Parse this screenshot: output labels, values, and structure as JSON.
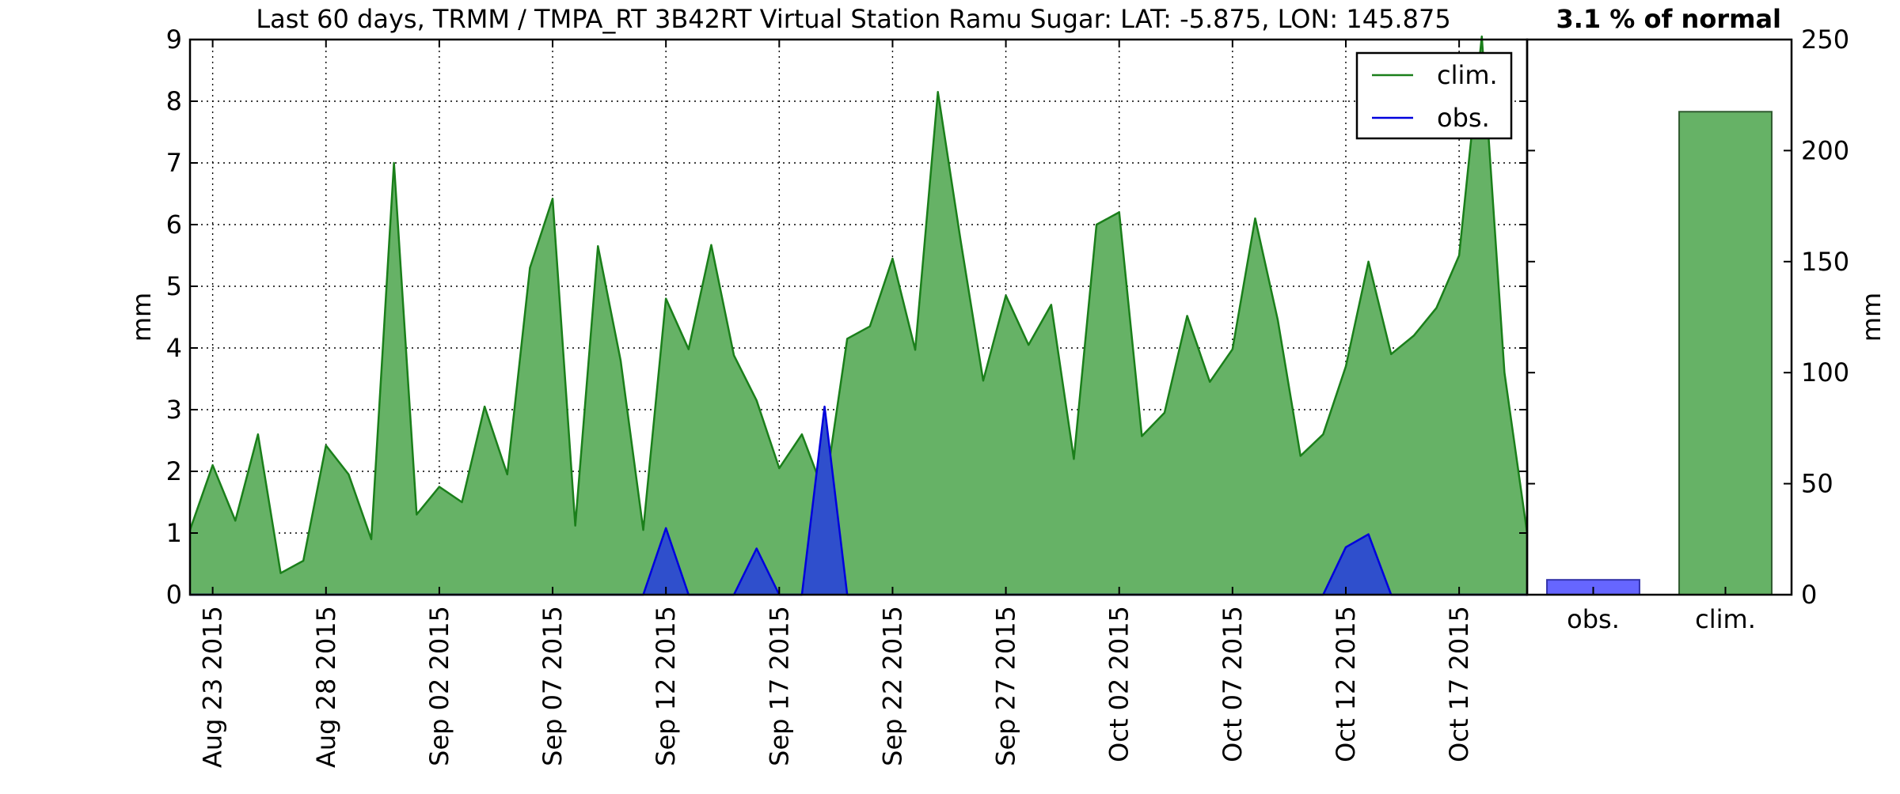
{
  "chart_data": [
    {
      "type": "area",
      "title": "Last 60 days, TRMM / TMPA_RT 3B42RT Virtual Station Ramu Sugar: LAT: -5.875, LON: 145.875",
      "ylabel": "mm",
      "ylim": [
        0,
        9
      ],
      "yticks": [
        0,
        1,
        2,
        3,
        4,
        5,
        6,
        7,
        8,
        9
      ],
      "xlim": [
        "2015-08-22",
        "2015-10-20"
      ],
      "xticks": [
        "Aug 23 2015",
        "Aug 28 2015",
        "Sep 02 2015",
        "Sep 07 2015",
        "Sep 12 2015",
        "Sep 17 2015",
        "Sep 22 2015",
        "Sep 27 2015",
        "Oct 02 2015",
        "Oct 07 2015",
        "Oct 12 2015",
        "Oct 17 2015"
      ],
      "grid": true,
      "legend": {
        "position": "top-right",
        "entries": [
          "clim.",
          "obs."
        ]
      },
      "x": [
        "2015-08-22",
        "2015-08-23",
        "2015-08-24",
        "2015-08-25",
        "2015-08-26",
        "2015-08-27",
        "2015-08-28",
        "2015-08-29",
        "2015-08-30",
        "2015-08-31",
        "2015-09-01",
        "2015-09-02",
        "2015-09-03",
        "2015-09-04",
        "2015-09-05",
        "2015-09-06",
        "2015-09-07",
        "2015-09-08",
        "2015-09-09",
        "2015-09-10",
        "2015-09-11",
        "2015-09-12",
        "2015-09-13",
        "2015-09-14",
        "2015-09-15",
        "2015-09-16",
        "2015-09-17",
        "2015-09-18",
        "2015-09-19",
        "2015-09-20",
        "2015-09-21",
        "2015-09-22",
        "2015-09-23",
        "2015-09-24",
        "2015-09-25",
        "2015-09-26",
        "2015-09-27",
        "2015-09-28",
        "2015-09-29",
        "2015-09-30",
        "2015-10-01",
        "2015-10-02",
        "2015-10-03",
        "2015-10-04",
        "2015-10-05",
        "2015-10-06",
        "2015-10-07",
        "2015-10-08",
        "2015-10-09",
        "2015-10-10",
        "2015-10-11",
        "2015-10-12",
        "2015-10-13",
        "2015-10-14",
        "2015-10-15",
        "2015-10-16",
        "2015-10-17",
        "2015-10-18",
        "2015-10-19",
        "2015-10-20"
      ],
      "series": [
        {
          "name": "clim.",
          "color": "#1a7f1a",
          "fill": "#66b266",
          "values": [
            1.05,
            2.1,
            1.2,
            2.6,
            0.35,
            0.55,
            2.42,
            1.95,
            0.9,
            7.0,
            1.3,
            1.75,
            1.5,
            3.05,
            1.95,
            5.3,
            6.42,
            1.12,
            5.65,
            3.8,
            1.05,
            4.8,
            3.98,
            5.67,
            3.88,
            3.15,
            2.05,
            2.6,
            1.63,
            4.15,
            4.35,
            5.45,
            3.97,
            8.15,
            5.75,
            3.47,
            4.85,
            4.05,
            4.7,
            2.2,
            6.0,
            6.2,
            2.57,
            2.95,
            4.52,
            3.45,
            3.98,
            6.1,
            4.45,
            2.25,
            2.6,
            3.7,
            5.4,
            3.9,
            4.2,
            4.65,
            5.5,
            9.05,
            3.6,
            1.0
          ]
        },
        {
          "name": "obs.",
          "color": "#0000dd",
          "fill": "#2f4fcc",
          "values": [
            0,
            0,
            0,
            0,
            0,
            0,
            0,
            0,
            0,
            0,
            0,
            0,
            0,
            0,
            0,
            0,
            0,
            0,
            0,
            0,
            0,
            1.08,
            0,
            0,
            0,
            0.75,
            0,
            0,
            3.05,
            0,
            0,
            0,
            0,
            0,
            0,
            0,
            0,
            0,
            0,
            0,
            0,
            0,
            0,
            0,
            0,
            0,
            0,
            0,
            0,
            0,
            0,
            0.77,
            0.98,
            0,
            0,
            0,
            0,
            0,
            0,
            0
          ]
        }
      ]
    },
    {
      "type": "bar",
      "title": "3.1 % of normal",
      "categories": [
        "obs.",
        "clim."
      ],
      "values": [
        6.7,
        217.5
      ],
      "colors": [
        "#6666ff",
        "#66b266"
      ],
      "edgecolors": [
        "#3333aa",
        "#2f5a2f"
      ],
      "ylabel": "mm",
      "ylim": [
        0,
        250
      ],
      "yticks": [
        0,
        50,
        100,
        150,
        200,
        250
      ]
    }
  ]
}
